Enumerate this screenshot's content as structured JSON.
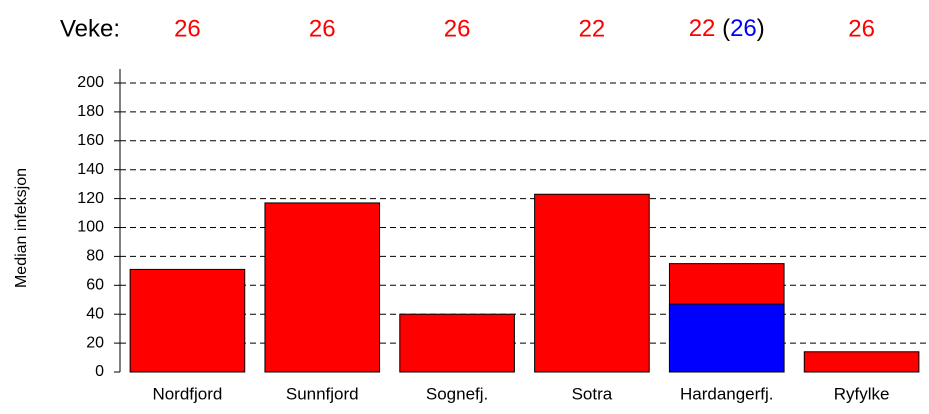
{
  "chart_data": {
    "type": "bar",
    "y_label": "Median infeksjon",
    "week_title": "Veke:",
    "categories": [
      "Nordfjord",
      "Sunnfjord",
      "Sognefj.",
      "Sotra",
      "Hardangerfj.",
      "Ryfylke"
    ],
    "series": [
      {
        "color": "#ff0000",
        "values": [
          71,
          117,
          40,
          123,
          75,
          14
        ],
        "weeks": [
          26,
          26,
          26,
          22,
          22,
          26
        ]
      },
      {
        "color": "#0000ff",
        "values": [
          null,
          null,
          null,
          null,
          47,
          null
        ],
        "weeks": [
          null,
          null,
          null,
          null,
          26,
          null
        ]
      }
    ],
    "week_brackets": [
      "(",
      ")"
    ],
    "ylim": [
      0,
      200
    ],
    "yticks": [
      0,
      20,
      40,
      60,
      80,
      100,
      120,
      140,
      160,
      180,
      200
    ],
    "grid": true
  }
}
